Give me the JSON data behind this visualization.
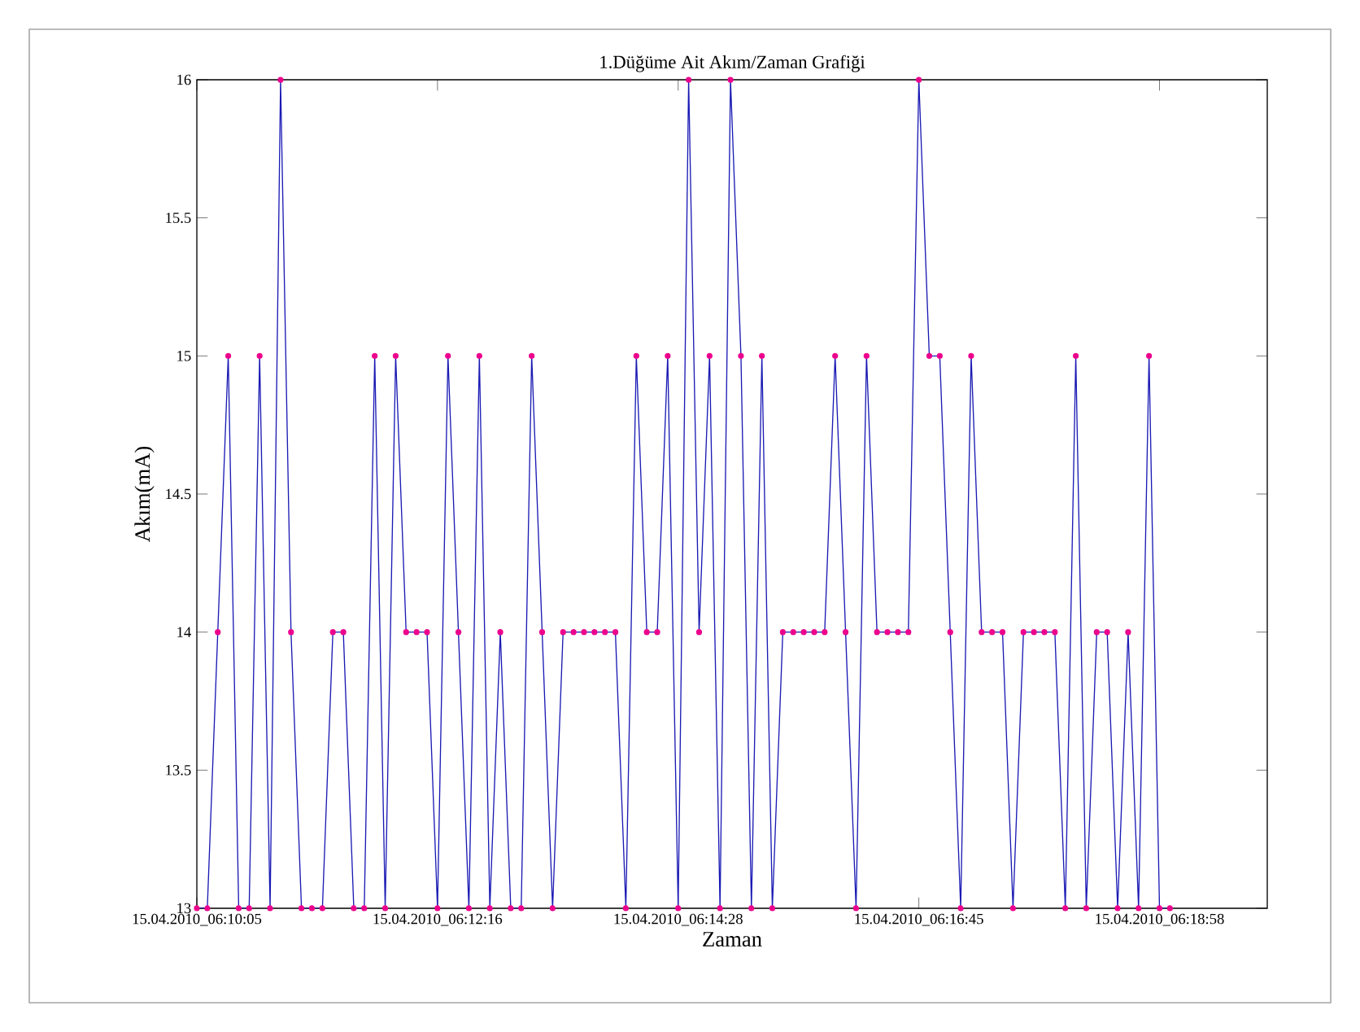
{
  "chart_data": {
    "type": "line",
    "title": "1.Düğüme Ait Akım/Zaman Grafiği",
    "xlabel": "Zaman",
    "ylabel": "Akım(mA)",
    "categories": [
      "15.04.2010_06:10:05",
      null,
      null,
      null,
      null,
      null,
      null,
      null,
      null,
      null,
      null,
      null,
      null,
      null,
      null,
      null,
      null,
      null,
      null,
      null,
      null,
      null,
      null,
      "15.04.2010_06:12:16",
      null,
      null,
      null,
      null,
      null,
      null,
      null,
      null,
      null,
      null,
      null,
      null,
      null,
      null,
      null,
      null,
      null,
      null,
      null,
      null,
      null,
      null,
      "15.04.2010_06:14:28",
      null,
      null,
      null,
      null,
      null,
      null,
      null,
      null,
      null,
      null,
      null,
      null,
      null,
      null,
      null,
      null,
      null,
      null,
      null,
      null,
      null,
      null,
      "15.04.2010_06:16:45",
      null,
      null,
      null,
      null,
      null,
      null,
      null,
      null,
      null,
      null,
      null,
      null,
      null,
      null,
      null,
      null,
      null,
      null,
      null,
      null,
      null,
      null,
      "15.04.2010_06:18:58",
      null
    ],
    "series": [
      {
        "color": "#1a1ab4",
        "values": [
          13,
          13,
          14,
          15,
          13,
          13,
          15,
          13,
          16,
          14,
          13,
          13,
          13,
          14,
          14,
          13,
          13,
          15,
          13,
          15,
          14,
          14,
          14,
          13,
          15,
          14,
          13,
          15,
          13,
          14,
          13,
          13,
          15,
          14,
          13,
          14,
          14,
          14,
          14,
          14,
          14,
          13,
          15,
          14,
          14,
          15,
          13,
          16,
          14,
          15,
          13,
          16,
          15,
          13,
          15,
          13,
          14,
          14,
          14,
          14,
          14,
          15,
          14,
          13,
          15,
          14,
          14,
          14,
          14,
          16,
          15,
          15,
          14,
          13,
          15,
          14,
          14,
          14,
          13,
          14,
          14,
          14,
          14,
          13,
          15,
          13,
          14,
          14,
          13,
          14,
          13,
          15,
          13,
          13
        ]
      }
    ],
    "ylim": [
      13,
      16
    ],
    "yticks": [
      13,
      13.5,
      14,
      14.5,
      15,
      15.5,
      16
    ],
    "marker": "circle",
    "line_style": "solid"
  }
}
